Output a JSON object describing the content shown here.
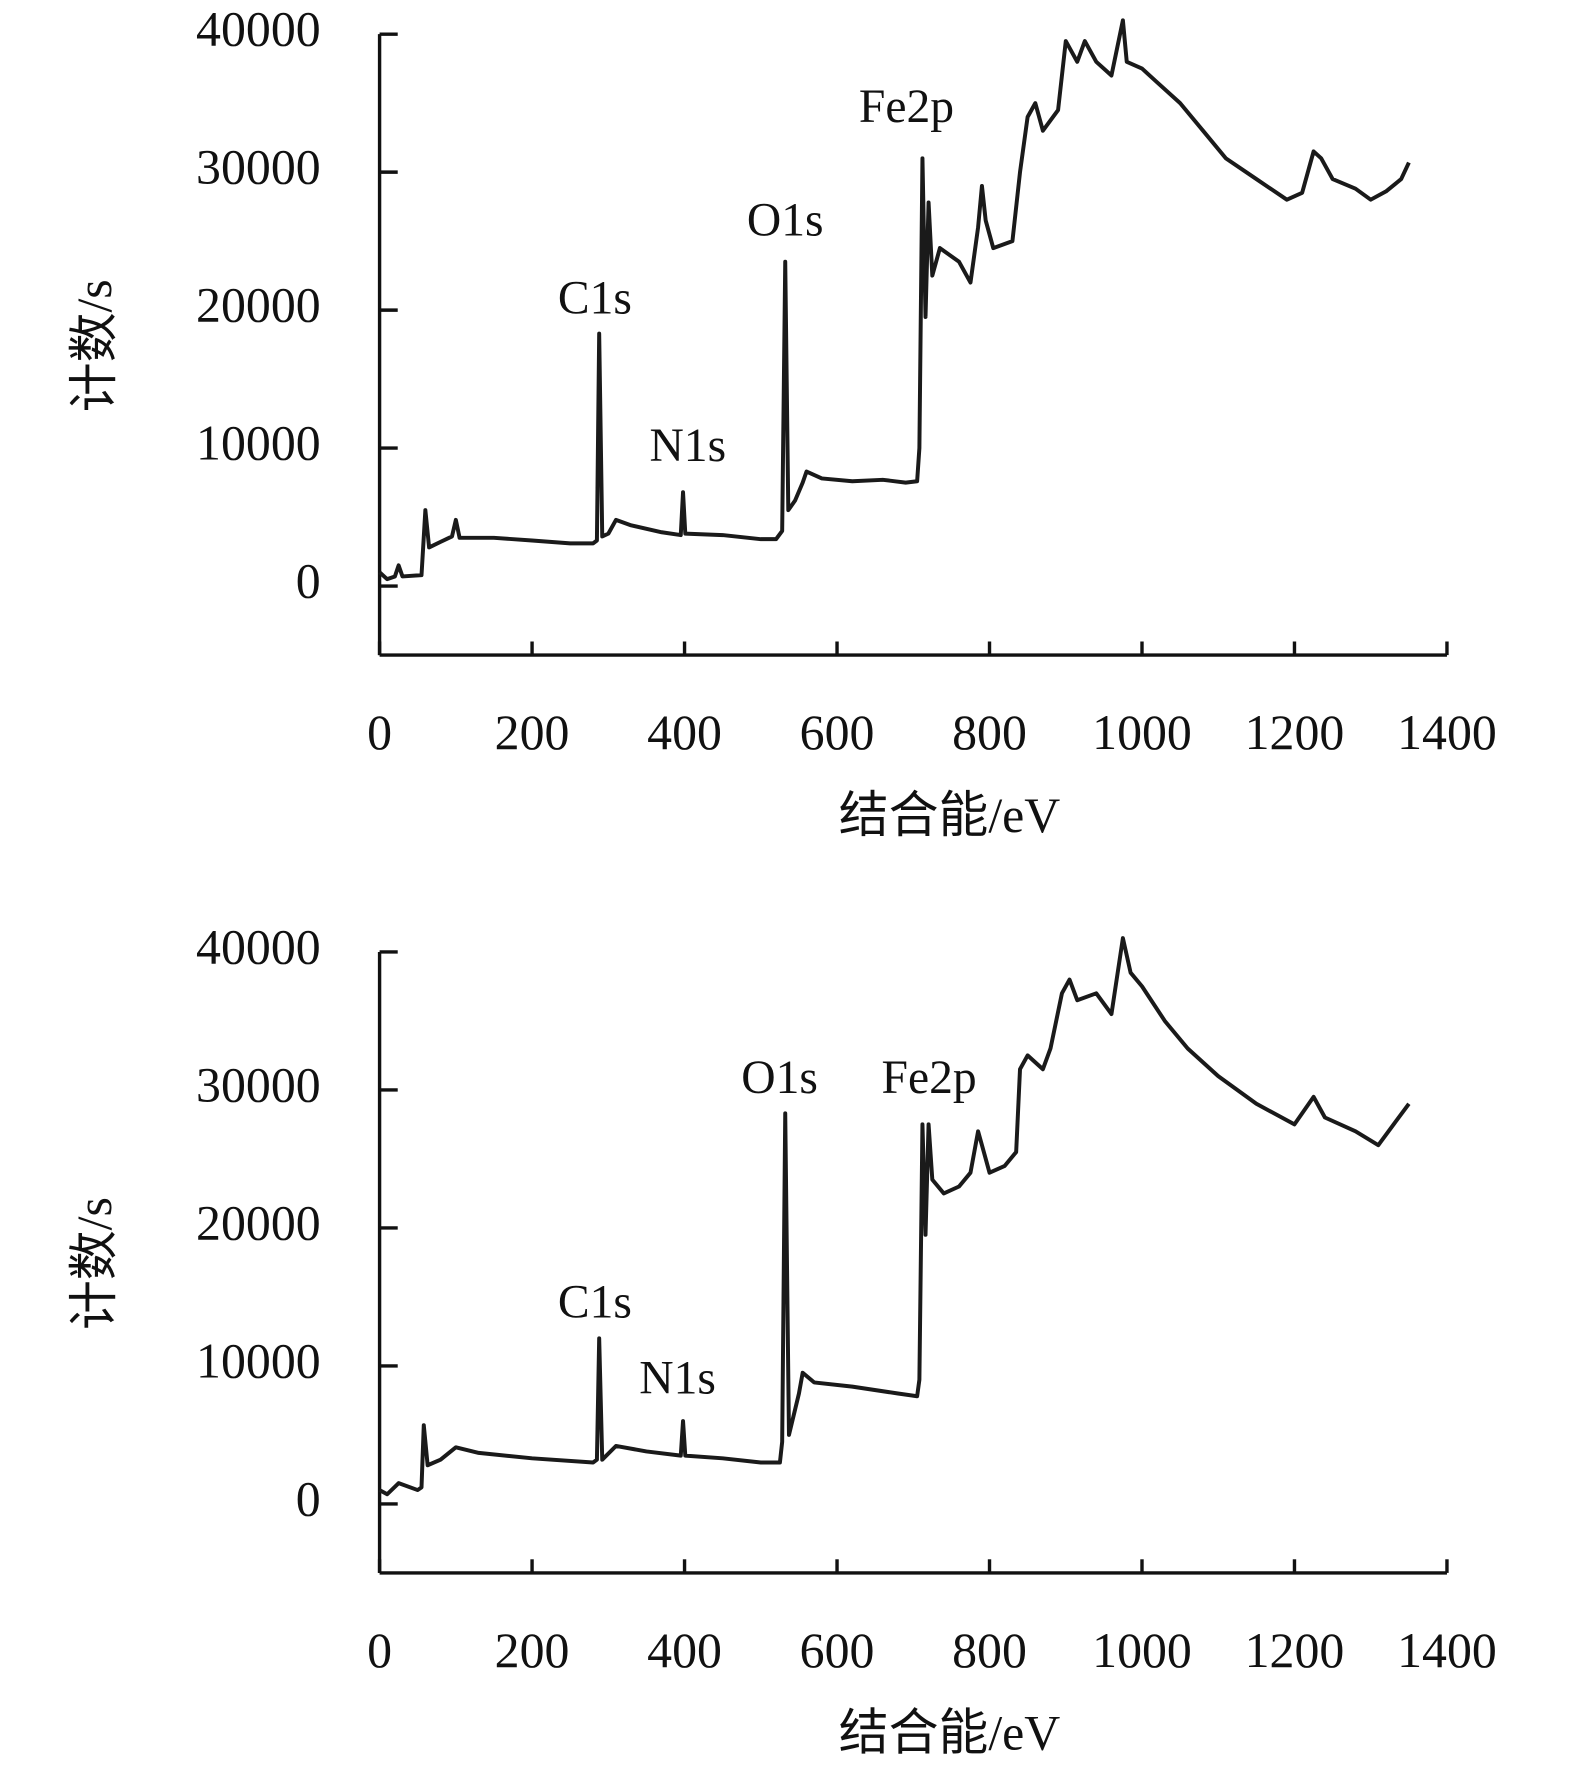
{
  "chart_data": [
    {
      "type": "line",
      "xlabel": "结合能/eV",
      "ylabel": "计数/s",
      "xlim": [
        0,
        1400
      ],
      "xticks": [
        0,
        200,
        400,
        600,
        800,
        1000,
        1200,
        1400
      ],
      "ylim": [
        -5000,
        40000
      ],
      "yticks": [
        0,
        10000,
        20000,
        30000,
        40000
      ],
      "annotations": [
        "Fe2p",
        "O1s",
        "C1s",
        "N1s"
      ],
      "color": "#1a1a1a",
      "x": [
        0,
        10,
        20,
        25,
        30,
        55,
        60,
        65,
        80,
        95,
        100,
        105,
        150,
        200,
        250,
        280,
        285,
        288,
        292,
        300,
        310,
        330,
        370,
        395,
        398,
        401,
        450,
        500,
        520,
        528,
        532,
        536,
        545,
        555,
        560,
        580,
        620,
        660,
        690,
        705,
        708,
        712,
        716,
        720,
        725,
        735,
        760,
        775,
        785,
        790,
        795,
        805,
        830,
        840,
        850,
        860,
        870,
        890,
        900,
        915,
        925,
        940,
        960,
        975,
        980,
        1000,
        1020,
        1050,
        1080,
        1110,
        1150,
        1190,
        1210,
        1225,
        1235,
        1250,
        1280,
        1300,
        1320,
        1340,
        1350
      ],
      "values": [
        1000,
        500,
        700,
        1500,
        700,
        800,
        5500,
        2800,
        3200,
        3600,
        4800,
        3500,
        3500,
        3300,
        3100,
        3100,
        3300,
        18300,
        3600,
        3800,
        4800,
        4400,
        3900,
        3700,
        6800,
        3800,
        3700,
        3400,
        3400,
        4000,
        23500,
        5500,
        6200,
        7500,
        8300,
        7800,
        7600,
        7700,
        7500,
        7600,
        10000,
        31000,
        19500,
        27800,
        22500,
        24500,
        23500,
        22000,
        26000,
        29000,
        26500,
        24500,
        25000,
        30000,
        34000,
        35000,
        33000,
        34500,
        39500,
        38000,
        39500,
        38000,
        37000,
        41000,
        38000,
        37500,
        36500,
        35000,
        33000,
        31000,
        29500,
        28000,
        28500,
        31500,
        31000,
        29500,
        28800,
        28000,
        28600,
        29500,
        30700
      ]
    },
    {
      "type": "line",
      "xlabel": "结合能/eV",
      "ylabel": "计数/s",
      "xlim": [
        0,
        1400
      ],
      "xticks": [
        0,
        200,
        400,
        600,
        800,
        1000,
        1200,
        1400
      ],
      "ylim": [
        -5000,
        40000
      ],
      "yticks": [
        0,
        10000,
        20000,
        30000,
        40000
      ],
      "annotations": [
        "O1s",
        "Fe2p",
        "C1s",
        "N1s"
      ],
      "color": "#1a1a1a",
      "x": [
        0,
        10,
        25,
        50,
        55,
        58,
        63,
        80,
        100,
        130,
        200,
        280,
        285,
        288,
        292,
        310,
        350,
        395,
        398,
        401,
        450,
        500,
        525,
        528,
        532,
        537,
        550,
        555,
        570,
        620,
        680,
        705,
        708,
        712,
        716,
        720,
        725,
        740,
        760,
        775,
        785,
        790,
        800,
        820,
        835,
        840,
        850,
        870,
        880,
        895,
        905,
        915,
        940,
        960,
        975,
        985,
        1000,
        1030,
        1060,
        1100,
        1150,
        1200,
        1225,
        1240,
        1280,
        1310,
        1330,
        1350
      ],
      "values": [
        1000,
        700,
        1500,
        1000,
        1200,
        5700,
        2800,
        3200,
        4100,
        3700,
        3300,
        3000,
        3200,
        12000,
        3200,
        4200,
        3800,
        3500,
        6000,
        3500,
        3300,
        3000,
        3000,
        4500,
        28300,
        5000,
        8000,
        9500,
        8800,
        8500,
        8000,
        7800,
        9000,
        27500,
        19500,
        27500,
        23500,
        22500,
        23000,
        24000,
        27000,
        26000,
        24000,
        24500,
        25500,
        31500,
        32500,
        31500,
        33000,
        37000,
        38000,
        36500,
        37000,
        35500,
        41000,
        38500,
        37500,
        35000,
        33000,
        31000,
        29000,
        27500,
        29500,
        28000,
        27000,
        26000,
        27500,
        29000
      ]
    }
  ]
}
